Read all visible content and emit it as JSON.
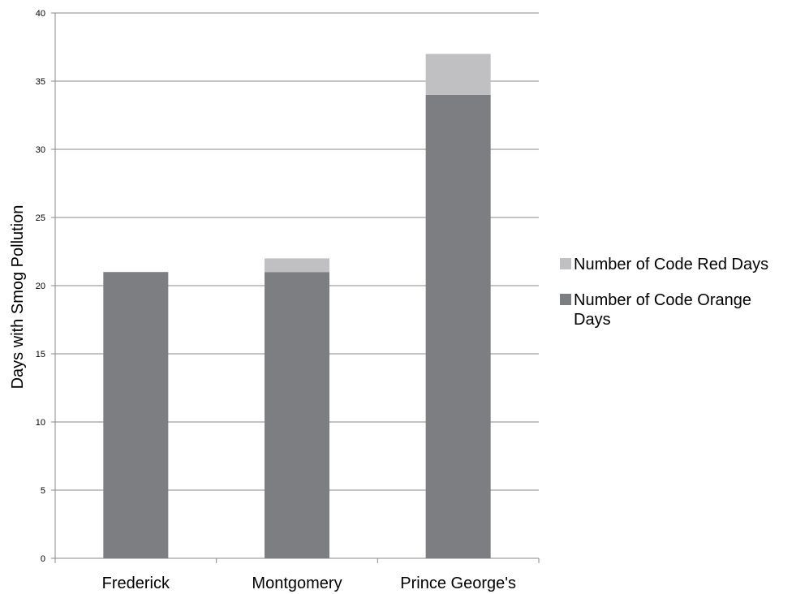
{
  "chart_data": {
    "type": "bar",
    "stacked": true,
    "categories": [
      "Frederick",
      "Montgomery",
      "Prince George's"
    ],
    "series": [
      {
        "name": "Number of Code Orange Days",
        "values": [
          21,
          21,
          34
        ],
        "color": "#7d7e82"
      },
      {
        "name": "Number of Code Red Days",
        "values": [
          0,
          1,
          3
        ],
        "color": "#c0c0c2"
      }
    ],
    "ylabel": "Days with Smog Pollution",
    "xlabel": "",
    "ylim": [
      0,
      40
    ],
    "yticks": [
      0,
      5,
      10,
      15,
      20,
      25,
      30,
      35,
      40
    ],
    "grid": true,
    "legend_position": "right",
    "legend_order": [
      "Number of Code Red Days",
      "Number of Code Orange Days"
    ]
  }
}
